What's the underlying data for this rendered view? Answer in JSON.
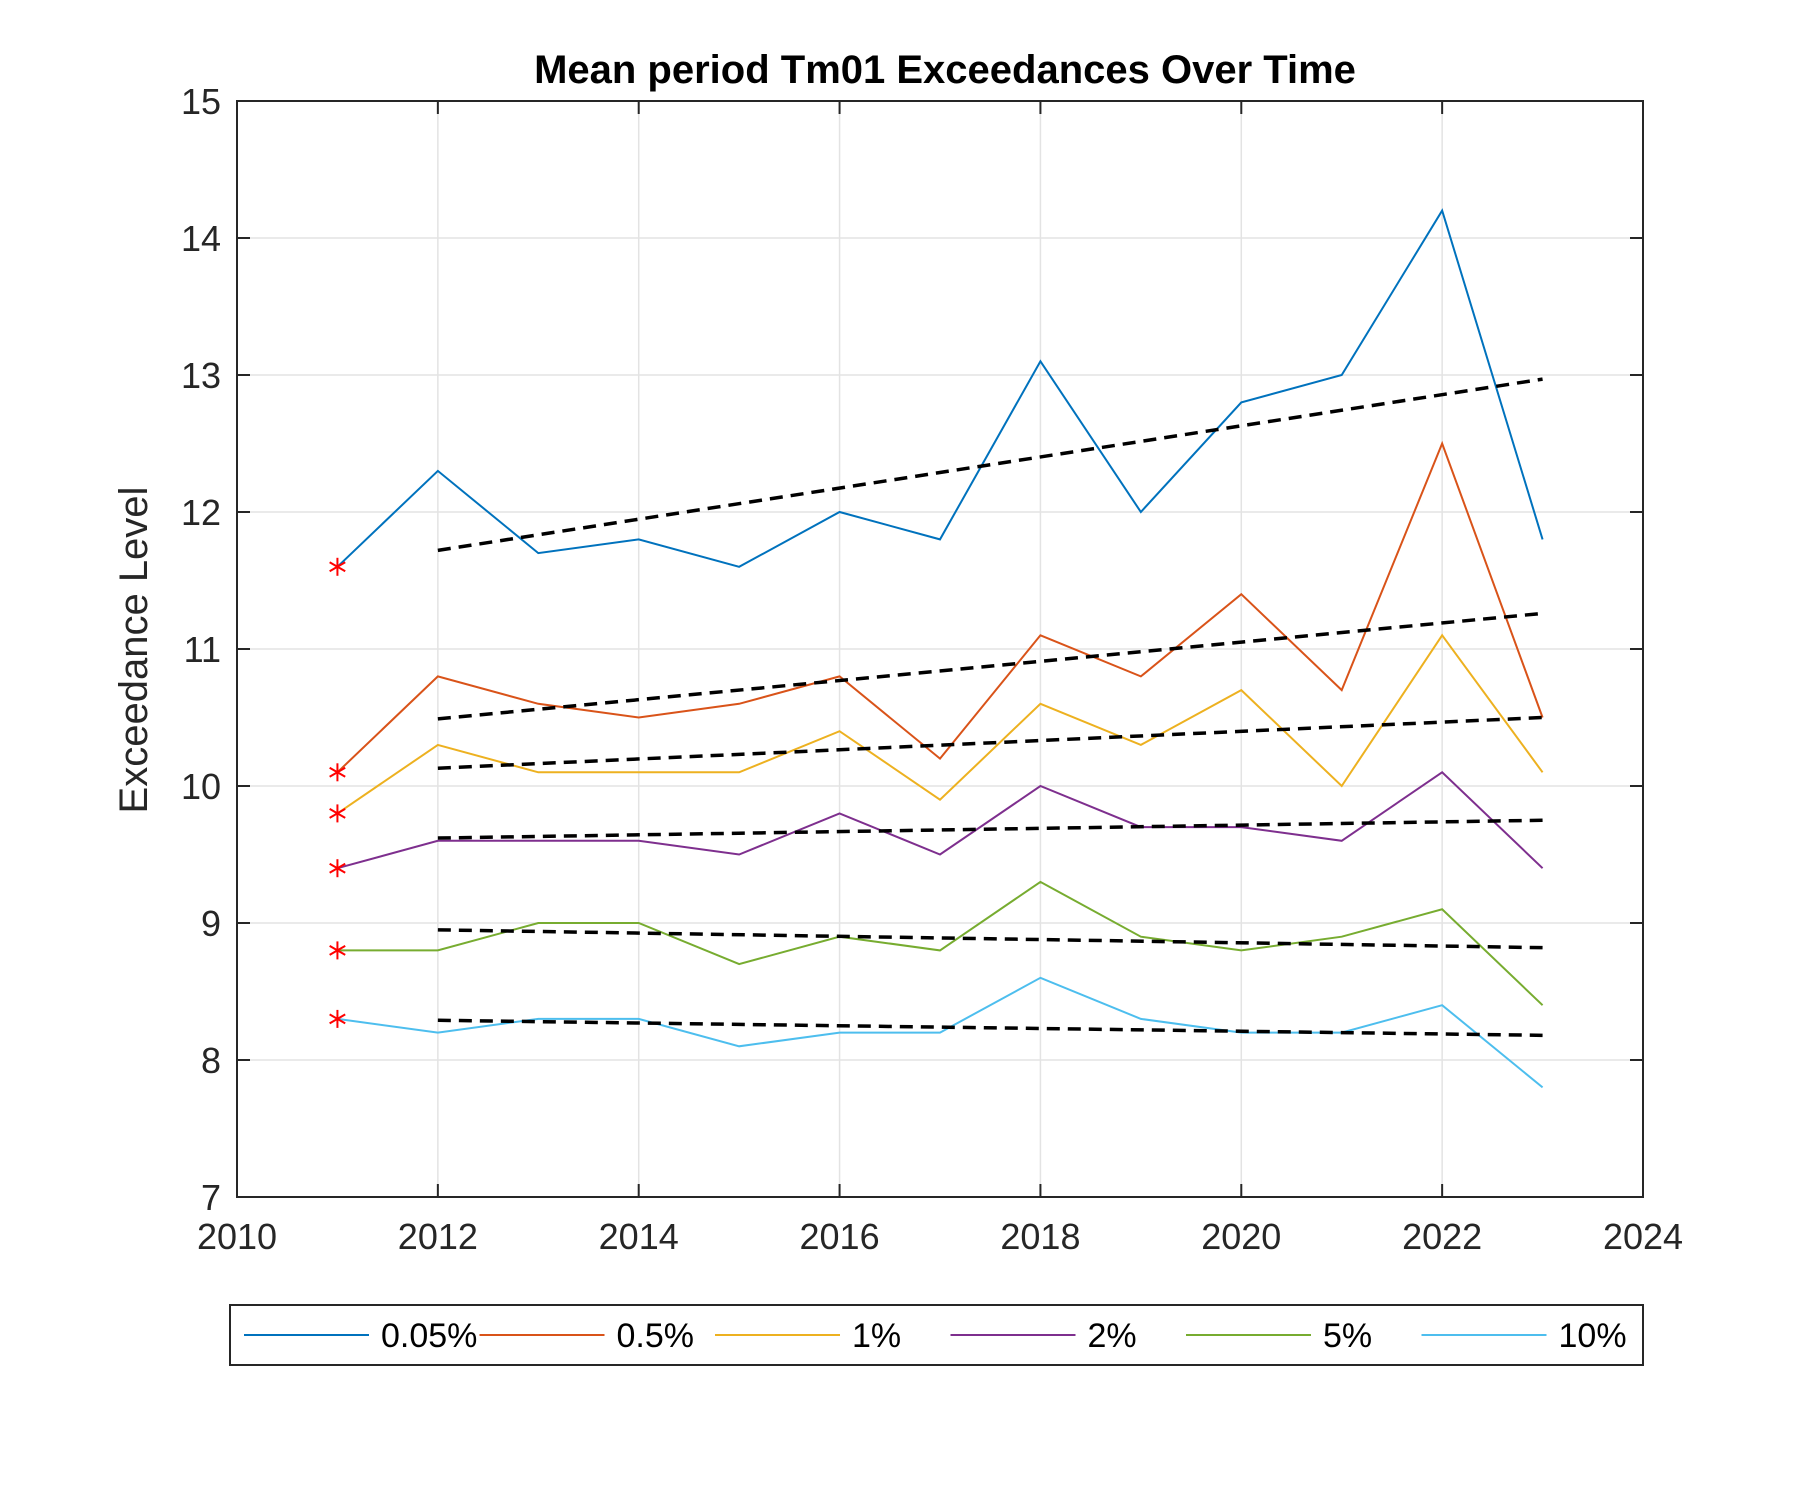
{
  "chart_data": {
    "type": "line",
    "title": "Mean period Tm01 Exceedances Over Time",
    "xlabel": "",
    "ylabel": "Exceedance Level",
    "xlim": [
      2010,
      2024
    ],
    "ylim": [
      7,
      15
    ],
    "xticks": [
      "2010",
      "2012",
      "2014",
      "2016",
      "2018",
      "2020",
      "2022",
      "2024"
    ],
    "yticks": [
      "7",
      "8",
      "9",
      "10",
      "11",
      "12",
      "13",
      "14",
      "15"
    ],
    "grid": true,
    "legend_position": "bottom",
    "x": [
      2011,
      2012,
      2013,
      2014,
      2015,
      2016,
      2017,
      2018,
      2019,
      2020,
      2021,
      2022,
      2023
    ],
    "series": [
      {
        "name": "0.05%",
        "color": "#0072BD",
        "values": [
          11.6,
          12.3,
          11.7,
          11.8,
          11.6,
          12.0,
          11.8,
          13.1,
          12.0,
          12.8,
          13.0,
          14.2,
          11.8
        ],
        "trend": [
          2012,
          11.72,
          2023,
          12.97
        ]
      },
      {
        "name": "0.5%",
        "color": "#D95319",
        "values": [
          10.1,
          10.8,
          10.6,
          10.5,
          10.6,
          10.8,
          10.2,
          11.1,
          10.8,
          11.4,
          10.7,
          12.5,
          10.5
        ],
        "trend": [
          2012,
          10.49,
          2023,
          11.26
        ]
      },
      {
        "name": "1%",
        "color": "#EDB120",
        "values": [
          9.8,
          10.3,
          10.1,
          10.1,
          10.1,
          10.4,
          9.9,
          10.6,
          10.3,
          10.7,
          10.0,
          11.1,
          10.1
        ],
        "trend": [
          2012,
          10.13,
          2023,
          10.5
        ]
      },
      {
        "name": "2%",
        "color": "#7E2F8E",
        "values": [
          9.4,
          9.6,
          9.6,
          9.6,
          9.5,
          9.8,
          9.5,
          10.0,
          9.7,
          9.7,
          9.6,
          10.1,
          9.4
        ],
        "trend": [
          2012,
          9.62,
          2023,
          9.75
        ]
      },
      {
        "name": "5%",
        "color": "#77AC30",
        "values": [
          8.8,
          8.8,
          9.0,
          9.0,
          8.7,
          8.9,
          8.8,
          9.3,
          8.9,
          8.8,
          8.9,
          9.1,
          8.4
        ],
        "trend": [
          2012,
          8.95,
          2023,
          8.82
        ]
      },
      {
        "name": "10%",
        "color": "#4DBEEE",
        "values": [
          8.3,
          8.2,
          8.3,
          8.3,
          8.1,
          8.2,
          8.2,
          8.6,
          8.3,
          8.2,
          8.2,
          8.4,
          7.8
        ],
        "trend": [
          2012,
          8.29,
          2023,
          8.18
        ]
      }
    ],
    "markers": {
      "x": 2011,
      "values": [
        11.6,
        10.1,
        9.8,
        9.4,
        8.8,
        8.3
      ],
      "symbol": "*",
      "color": "#FF0000"
    },
    "trend_style": {
      "color": "#000000",
      "dash": "dashed"
    }
  }
}
